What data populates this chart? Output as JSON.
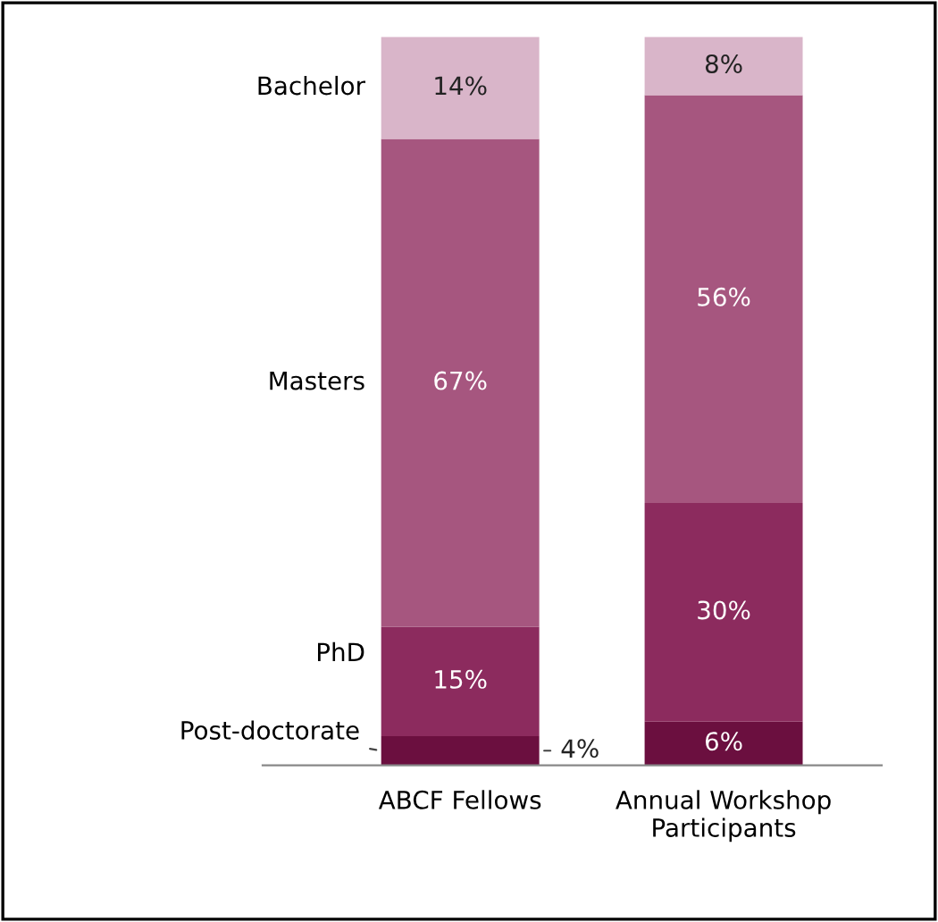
{
  "chart_data": {
    "type": "bar",
    "stacked": true,
    "categories": [
      "ABCF Fellows",
      "Annual Workshop\nParticipants"
    ],
    "legend": false,
    "grid": false,
    "series": [
      {
        "name": "Post-doctorate",
        "color": "#6b0f3f",
        "values": [
          4,
          6
        ],
        "value_labels": [
          "4%",
          "6%"
        ]
      },
      {
        "name": "PhD",
        "color": "#8c2b5e",
        "values": [
          15,
          30
        ],
        "value_labels": [
          "15%",
          "30%"
        ]
      },
      {
        "name": "Masters",
        "color": "#a6567f",
        "values": [
          67,
          56
        ],
        "value_labels": [
          "67%",
          "56%"
        ]
      },
      {
        "name": "Bachelor",
        "color": "#d9b5c9",
        "values": [
          14,
          8
        ],
        "value_labels": [
          "14%",
          "8%"
        ]
      }
    ]
  }
}
